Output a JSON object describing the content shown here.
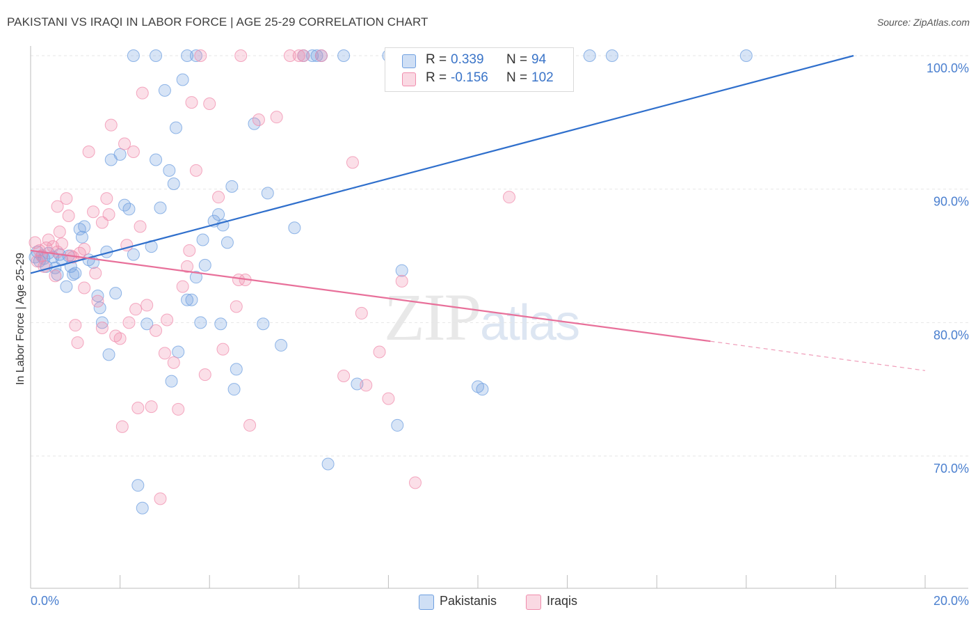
{
  "title": "PAKISTANI VS IRAQI IN LABOR FORCE | AGE 25-29 CORRELATION CHART",
  "source": "Source: ZipAtlas.com",
  "watermark": {
    "zip": "ZIP",
    "atlas": "atlas"
  },
  "stats": [
    {
      "r_label": "R =",
      "r_value": "0.339",
      "n_label": "N =",
      "n_value": "94",
      "color": "#6e9fe0"
    },
    {
      "r_label": "R =",
      "r_value": "-0.156",
      "n_label": "N =",
      "n_value": "102",
      "color": "#f08cac"
    }
  ],
  "legend": [
    {
      "label": "Pakistanis",
      "color": "#6e9fe0"
    },
    {
      "label": "Iraqis",
      "color": "#f08cac"
    }
  ],
  "chart_data": {
    "type": "scatter",
    "title": "PAKISTANI VS IRAQI IN LABOR FORCE | AGE 25-29 CORRELATION CHART",
    "xlabel": "",
    "ylabel": "In Labor Force | Age 25-29",
    "xlim": [
      0,
      20
    ],
    "ylim": [
      60,
      102
    ],
    "x_tick_labels": [
      "0.0%",
      "20.0%"
    ],
    "y_ticks": [
      70,
      80,
      90,
      100
    ],
    "y_tick_labels": [
      "70.0%",
      "80.0%",
      "90.0%",
      "100.0%"
    ],
    "grid": true,
    "series": [
      {
        "name": "Pakistanis",
        "color": "#6e9fe0",
        "line_color": "#2f6fcc",
        "trend": {
          "x0": 0,
          "y0": 83.7,
          "x1": 18.4,
          "y1": 100.0
        },
        "points": [
          [
            0.1,
            84.9
          ],
          [
            0.15,
            85.3
          ],
          [
            0.2,
            84.6
          ],
          [
            0.25,
            85.0
          ],
          [
            0.3,
            84.8
          ],
          [
            0.35,
            84.2
          ],
          [
            0.4,
            85.2
          ],
          [
            0.5,
            84.9
          ],
          [
            0.55,
            84.1
          ],
          [
            0.6,
            83.6
          ],
          [
            0.65,
            85.1
          ],
          [
            0.7,
            84.7
          ],
          [
            0.8,
            82.7
          ],
          [
            0.85,
            85.0
          ],
          [
            0.9,
            84.2
          ],
          [
            0.95,
            83.6
          ],
          [
            1.0,
            83.7
          ],
          [
            1.1,
            87.0
          ],
          [
            1.15,
            86.4
          ],
          [
            1.2,
            87.2
          ],
          [
            1.3,
            84.7
          ],
          [
            1.4,
            84.5
          ],
          [
            1.5,
            82.0
          ],
          [
            1.55,
            81.1
          ],
          [
            1.6,
            80.0
          ],
          [
            1.7,
            85.3
          ],
          [
            1.75,
            77.6
          ],
          [
            1.8,
            92.2
          ],
          [
            1.9,
            82.2
          ],
          [
            2.0,
            92.6
          ],
          [
            2.1,
            88.8
          ],
          [
            2.2,
            88.5
          ],
          [
            2.3,
            85.1
          ],
          [
            2.4,
            67.8
          ],
          [
            2.5,
            66.1
          ],
          [
            2.6,
            79.9
          ],
          [
            2.7,
            85.7
          ],
          [
            2.8,
            92.2
          ],
          [
            2.9,
            88.6
          ],
          [
            3.0,
            97.4
          ],
          [
            3.1,
            91.4
          ],
          [
            3.15,
            75.6
          ],
          [
            3.2,
            90.4
          ],
          [
            3.25,
            94.6
          ],
          [
            3.3,
            77.8
          ],
          [
            3.4,
            98.2
          ],
          [
            3.5,
            81.7
          ],
          [
            3.6,
            81.7
          ],
          [
            3.7,
            83.4
          ],
          [
            3.8,
            80.0
          ],
          [
            3.85,
            86.2
          ],
          [
            3.9,
            84.3
          ],
          [
            4.1,
            87.6
          ],
          [
            4.2,
            88.1
          ],
          [
            4.25,
            79.9
          ],
          [
            4.3,
            87.3
          ],
          [
            4.4,
            86.0
          ],
          [
            4.5,
            90.2
          ],
          [
            4.55,
            75.0
          ],
          [
            4.6,
            76.5
          ],
          [
            5.0,
            94.9
          ],
          [
            5.2,
            79.9
          ],
          [
            5.3,
            89.7
          ],
          [
            5.6,
            78.3
          ],
          [
            5.9,
            87.1
          ],
          [
            6.1,
            100
          ],
          [
            6.3,
            100
          ],
          [
            6.4,
            100
          ],
          [
            6.5,
            100
          ],
          [
            6.65,
            69.4
          ],
          [
            7.0,
            100
          ],
          [
            7.3,
            75.4
          ],
          [
            8.0,
            100
          ],
          [
            8.2,
            72.3
          ],
          [
            8.3,
            83.9
          ],
          [
            9.5,
            100
          ],
          [
            10.0,
            75.2
          ],
          [
            10.1,
            75.0
          ],
          [
            12.5,
            100
          ],
          [
            13.0,
            100
          ],
          [
            16.0,
            100
          ],
          [
            2.3,
            100
          ],
          [
            2.8,
            100
          ],
          [
            3.5,
            100
          ],
          [
            3.7,
            100
          ]
        ]
      },
      {
        "name": "Iraqis",
        "color": "#f08cac",
        "line_color": "#e8709a",
        "trend": {
          "x0": 0,
          "y0": 85.4,
          "x1": 15.2,
          "y1": 78.6
        },
        "trend_dashed": {
          "x0": 15.2,
          "y0": 78.6,
          "x1": 20.0,
          "y1": 76.4
        },
        "points": [
          [
            0.1,
            86.0
          ],
          [
            0.15,
            84.6
          ],
          [
            0.2,
            85.4
          ],
          [
            0.25,
            85.0
          ],
          [
            0.3,
            84.2
          ],
          [
            0.35,
            85.6
          ],
          [
            0.4,
            86.2
          ],
          [
            0.5,
            85.7
          ],
          [
            0.55,
            83.5
          ],
          [
            0.6,
            85.3
          ],
          [
            0.65,
            86.8
          ],
          [
            0.7,
            85.9
          ],
          [
            0.8,
            89.3
          ],
          [
            0.85,
            88.0
          ],
          [
            0.9,
            85.0
          ],
          [
            0.95,
            84.9
          ],
          [
            1.0,
            79.8
          ],
          [
            1.05,
            78.5
          ],
          [
            1.1,
            85.2
          ],
          [
            1.2,
            82.6
          ],
          [
            1.3,
            92.8
          ],
          [
            1.4,
            88.3
          ],
          [
            1.45,
            83.7
          ],
          [
            1.5,
            81.6
          ],
          [
            1.6,
            79.6
          ],
          [
            1.7,
            89.3
          ],
          [
            1.75,
            88.1
          ],
          [
            1.8,
            94.8
          ],
          [
            1.9,
            79.0
          ],
          [
            2.0,
            78.8
          ],
          [
            2.05,
            72.2
          ],
          [
            2.1,
            93.4
          ],
          [
            2.2,
            80.0
          ],
          [
            2.3,
            92.8
          ],
          [
            2.35,
            81.0
          ],
          [
            2.4,
            73.6
          ],
          [
            2.5,
            97.2
          ],
          [
            2.6,
            81.3
          ],
          [
            2.7,
            73.7
          ],
          [
            2.8,
            79.4
          ],
          [
            2.9,
            66.8
          ],
          [
            3.0,
            77.7
          ],
          [
            3.05,
            80.2
          ],
          [
            3.2,
            77.0
          ],
          [
            3.3,
            73.5
          ],
          [
            3.5,
            84.2
          ],
          [
            3.6,
            96.5
          ],
          [
            3.7,
            91.4
          ],
          [
            3.9,
            76.1
          ],
          [
            4.0,
            96.4
          ],
          [
            4.2,
            89.4
          ],
          [
            4.3,
            78.0
          ],
          [
            4.6,
            81.2
          ],
          [
            4.8,
            83.2
          ],
          [
            4.9,
            72.3
          ],
          [
            5.1,
            95.2
          ],
          [
            5.5,
            95.4
          ],
          [
            5.8,
            100
          ],
          [
            6.0,
            100
          ],
          [
            6.1,
            100
          ],
          [
            6.5,
            100
          ],
          [
            7.0,
            76.0
          ],
          [
            7.2,
            92.0
          ],
          [
            7.4,
            80.7
          ],
          [
            7.5,
            75.3
          ],
          [
            7.8,
            77.8
          ],
          [
            8.0,
            74.3
          ],
          [
            8.3,
            83.1
          ],
          [
            8.6,
            68.0
          ],
          [
            10.7,
            89.4
          ],
          [
            0.6,
            88.7
          ],
          [
            1.2,
            85.5
          ],
          [
            1.6,
            87.5
          ],
          [
            2.15,
            85.8
          ],
          [
            2.45,
            87.2
          ],
          [
            3.4,
            82.7
          ],
          [
            3.55,
            85.4
          ],
          [
            4.65,
            83.2
          ],
          [
            4.7,
            100
          ],
          [
            3.8,
            100
          ]
        ]
      }
    ]
  }
}
